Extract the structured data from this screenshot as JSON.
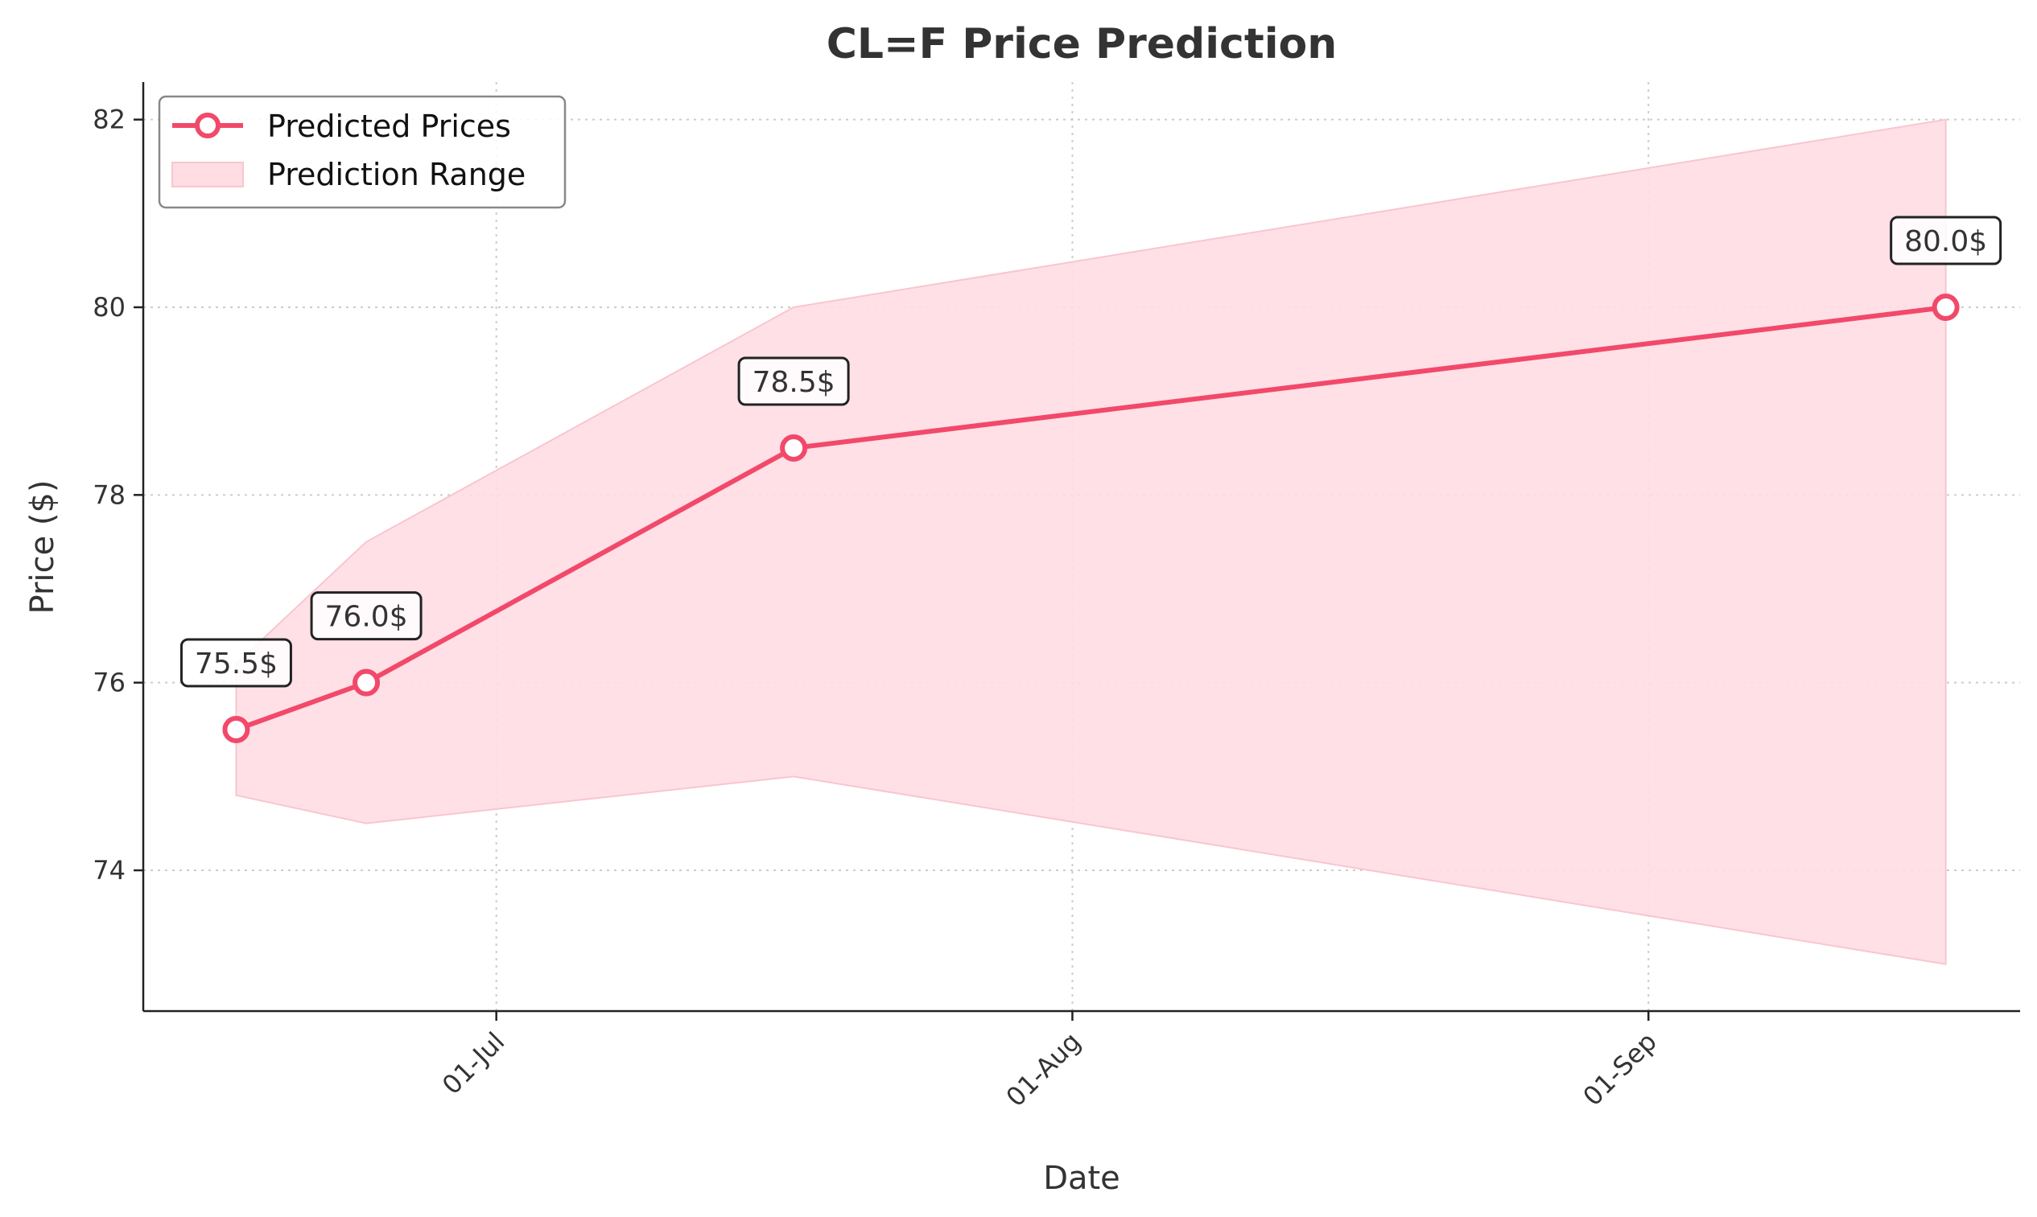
{
  "chart_data": {
    "type": "line",
    "title": "CL=F Price Prediction",
    "xlabel": "Date",
    "ylabel": "Price ($)",
    "x_ticks": [
      "01-Jul",
      "01-Aug",
      "01-Sep"
    ],
    "y_ticks": [
      74,
      76,
      78,
      80,
      82
    ],
    "xlim": [
      "2024-06-12",
      "2024-09-21"
    ],
    "ylim": [
      72.5,
      82.4
    ],
    "grid": true,
    "legend_position": "top-left",
    "legend": [
      "Predicted Prices",
      "Prediction Range"
    ],
    "series": [
      {
        "name": "Predicted Prices",
        "dates": [
          "2024-06-17",
          "2024-06-24",
          "2024-07-17",
          "2024-09-17"
        ],
        "values": [
          75.5,
          76.0,
          78.5,
          80.0
        ],
        "labels": [
          "75.5$",
          "76.0$",
          "78.5$",
          "80.0$"
        ],
        "color": "#f2496a"
      },
      {
        "name": "Prediction Range",
        "type": "area",
        "dates": [
          "2024-06-17",
          "2024-06-24",
          "2024-07-17",
          "2024-09-17"
        ],
        "upper": [
          76.2,
          77.5,
          80.0,
          82.0
        ],
        "lower": [
          74.8,
          74.5,
          75.0,
          73.0
        ],
        "color": "#ffdde3"
      }
    ]
  }
}
